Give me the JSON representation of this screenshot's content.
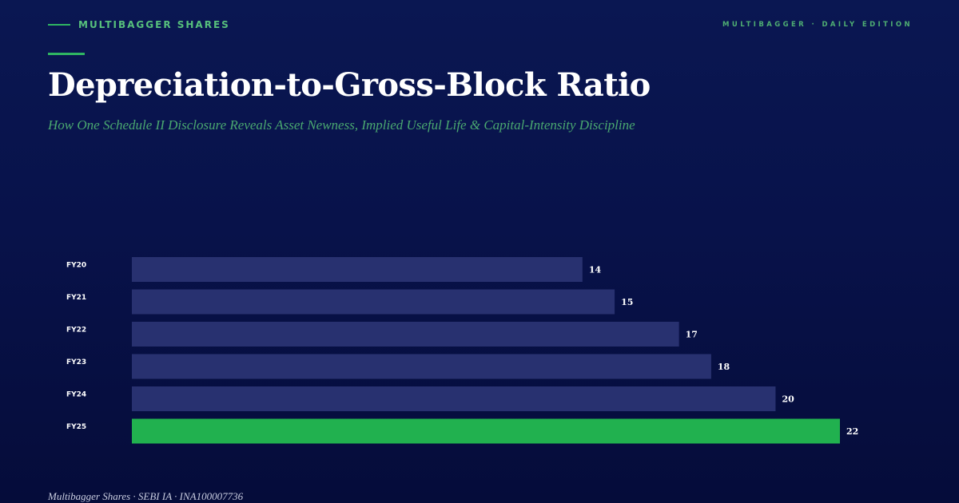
{
  "header": {
    "brand": "MULTIBAGGER SHARES",
    "edition": "MULTIBAGGER · DAILY EDITION"
  },
  "title": "Depreciation-to-Gross-Block Ratio",
  "subtitle": "How One Schedule II Disclosure Reveals Asset Newness, Implied Useful Life & Capital-Intensity Discipline",
  "footer": {
    "text": "Multibagger Shares · SEBI IA · INA100007736"
  },
  "colors": {
    "background": "#08124a",
    "bar": "#283170",
    "highlight_bar": "#21b14f",
    "accent": "#2fb562"
  },
  "chart_data": {
    "type": "bar",
    "orientation": "horizontal",
    "categories": [
      "FY20",
      "FY21",
      "FY22",
      "FY23",
      "FY24",
      "FY25"
    ],
    "values": [
      14,
      15,
      17,
      18,
      20,
      22
    ],
    "highlight": "FY25",
    "xlim": [
      0,
      22
    ],
    "grid": false
  }
}
